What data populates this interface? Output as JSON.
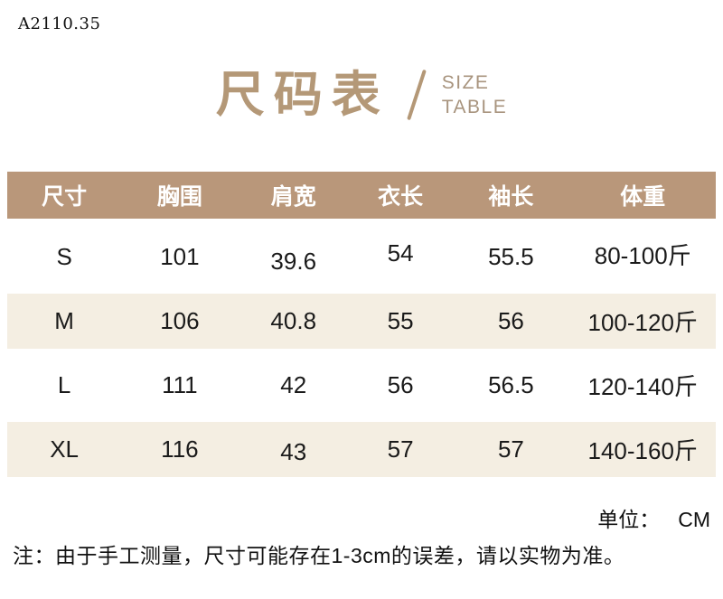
{
  "product_code": "A2110.35",
  "title": {
    "zh": "尺码表",
    "en_line1": "SIZE",
    "en_line2": "TABLE"
  },
  "size_table": {
    "headers": [
      "尺寸",
      "胸围",
      "肩宽",
      "衣长",
      "袖长",
      "体重"
    ],
    "rows": [
      [
        "S",
        "101",
        "39.6",
        "54",
        "55.5",
        "80-100斤"
      ],
      [
        "M",
        "106",
        "40.8",
        "55",
        "56",
        "100-120斤"
      ],
      [
        "L",
        "111",
        "42",
        "56",
        "56.5",
        "120-140斤"
      ],
      [
        "XL",
        "116",
        "43",
        "57",
        "57",
        "140-160斤"
      ]
    ]
  },
  "footer": {
    "unit_label": "单位：",
    "unit_value": "CM",
    "note": "注：由于手工测量，尺寸可能存在1-3cm的误差，请以实物为准。"
  },
  "colors": {
    "accent_tan": "#b49877",
    "header_bg": "#b9977a",
    "row_alt_bg": "#f4eee2",
    "text": "#1a1a1a"
  }
}
